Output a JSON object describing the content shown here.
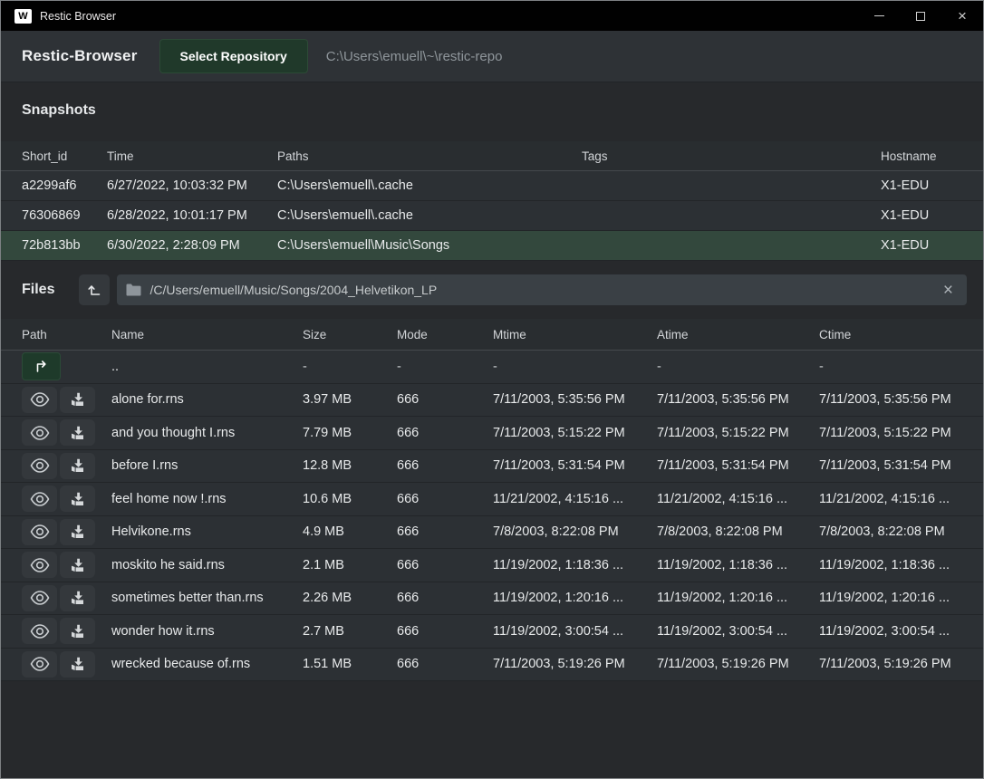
{
  "window": {
    "title": "Restic Browser",
    "controls": {
      "close": "×"
    }
  },
  "header": {
    "app_name": "Restic-Browser",
    "select_repository_label": "Select Repository",
    "repository_path": "C:\\Users\\emuell\\~\\restic-repo"
  },
  "snapshots": {
    "title": "Snapshots",
    "columns": [
      "Short_id",
      "Time",
      "Paths",
      "Tags",
      "Hostname"
    ],
    "rows": [
      {
        "short_id": "a2299af6",
        "time": "6/27/2022, 10:03:32 PM",
        "paths": "C:\\Users\\emuell\\.cache",
        "tags": "",
        "hostname": "X1-EDU",
        "selected": false
      },
      {
        "short_id": "76306869",
        "time": "6/28/2022, 10:01:17 PM",
        "paths": "C:\\Users\\emuell\\.cache",
        "tags": "",
        "hostname": "X1-EDU",
        "selected": false
      },
      {
        "short_id": "72b813bb",
        "time": "6/30/2022, 2:28:09 PM",
        "paths": "C:\\Users\\emuell\\Music\\Songs",
        "tags": "",
        "hostname": "X1-EDU",
        "selected": true
      }
    ]
  },
  "files": {
    "title": "Files",
    "path_bar": {
      "path": "/C/Users/emuell/Music/Songs/2004_Helvetikon_LP"
    },
    "columns": [
      "Path",
      "Name",
      "Size",
      "Mode",
      "Mtime",
      "Atime",
      "Ctime"
    ],
    "parent_row": {
      "name": "..",
      "size": "-",
      "mode": "-",
      "mtime": "-",
      "atime": "-",
      "ctime": "-"
    },
    "rows": [
      {
        "name": "alone for.rns",
        "size": "3.97 MB",
        "mode": "666",
        "mtime": "7/11/2003, 5:35:56 PM",
        "atime": "7/11/2003, 5:35:56 PM",
        "ctime": "7/11/2003, 5:35:56 PM"
      },
      {
        "name": "and you thought I.rns",
        "size": "7.79 MB",
        "mode": "666",
        "mtime": "7/11/2003, 5:15:22 PM",
        "atime": "7/11/2003, 5:15:22 PM",
        "ctime": "7/11/2003, 5:15:22 PM"
      },
      {
        "name": "before I.rns",
        "size": "12.8 MB",
        "mode": "666",
        "mtime": "7/11/2003, 5:31:54 PM",
        "atime": "7/11/2003, 5:31:54 PM",
        "ctime": "7/11/2003, 5:31:54 PM"
      },
      {
        "name": "feel home now !.rns",
        "size": "10.6 MB",
        "mode": "666",
        "mtime": "11/21/2002, 4:15:16 ...",
        "atime": "11/21/2002, 4:15:16 ...",
        "ctime": "11/21/2002, 4:15:16 ..."
      },
      {
        "name": "Helvikone.rns",
        "size": "4.9 MB",
        "mode": "666",
        "mtime": "7/8/2003, 8:22:08 PM",
        "atime": "7/8/2003, 8:22:08 PM",
        "ctime": "7/8/2003, 8:22:08 PM"
      },
      {
        "name": "moskito he said.rns",
        "size": "2.1 MB",
        "mode": "666",
        "mtime": "11/19/2002, 1:18:36 ...",
        "atime": "11/19/2002, 1:18:36 ...",
        "ctime": "11/19/2002, 1:18:36 ..."
      },
      {
        "name": "sometimes better than.rns",
        "size": "2.26 MB",
        "mode": "666",
        "mtime": "11/19/2002, 1:20:16 ...",
        "atime": "11/19/2002, 1:20:16 ...",
        "ctime": "11/19/2002, 1:20:16 ..."
      },
      {
        "name": "wonder how it.rns",
        "size": "2.7 MB",
        "mode": "666",
        "mtime": "11/19/2002, 3:00:54 ...",
        "atime": "11/19/2002, 3:00:54 ...",
        "ctime": "11/19/2002, 3:00:54 ..."
      },
      {
        "name": "wrecked because of.rns",
        "size": "1.51 MB",
        "mode": "666",
        "mtime": "7/11/2003, 5:19:26 PM",
        "atime": "7/11/2003, 5:19:26 PM",
        "ctime": "7/11/2003, 5:19:26 PM"
      }
    ]
  },
  "colors": {
    "titlebar_bg": "#010101",
    "header_bg": "#2e3236",
    "main_bg": "#27292c",
    "row_bg": "#2c3034",
    "selected_row_green": "#33483d",
    "button_green": "#20392a",
    "icon_button_bg": "#34383c",
    "pathbar_bg": "#3a4045",
    "text_primary": "#e8eaeb",
    "text_muted": "#8f969b"
  }
}
